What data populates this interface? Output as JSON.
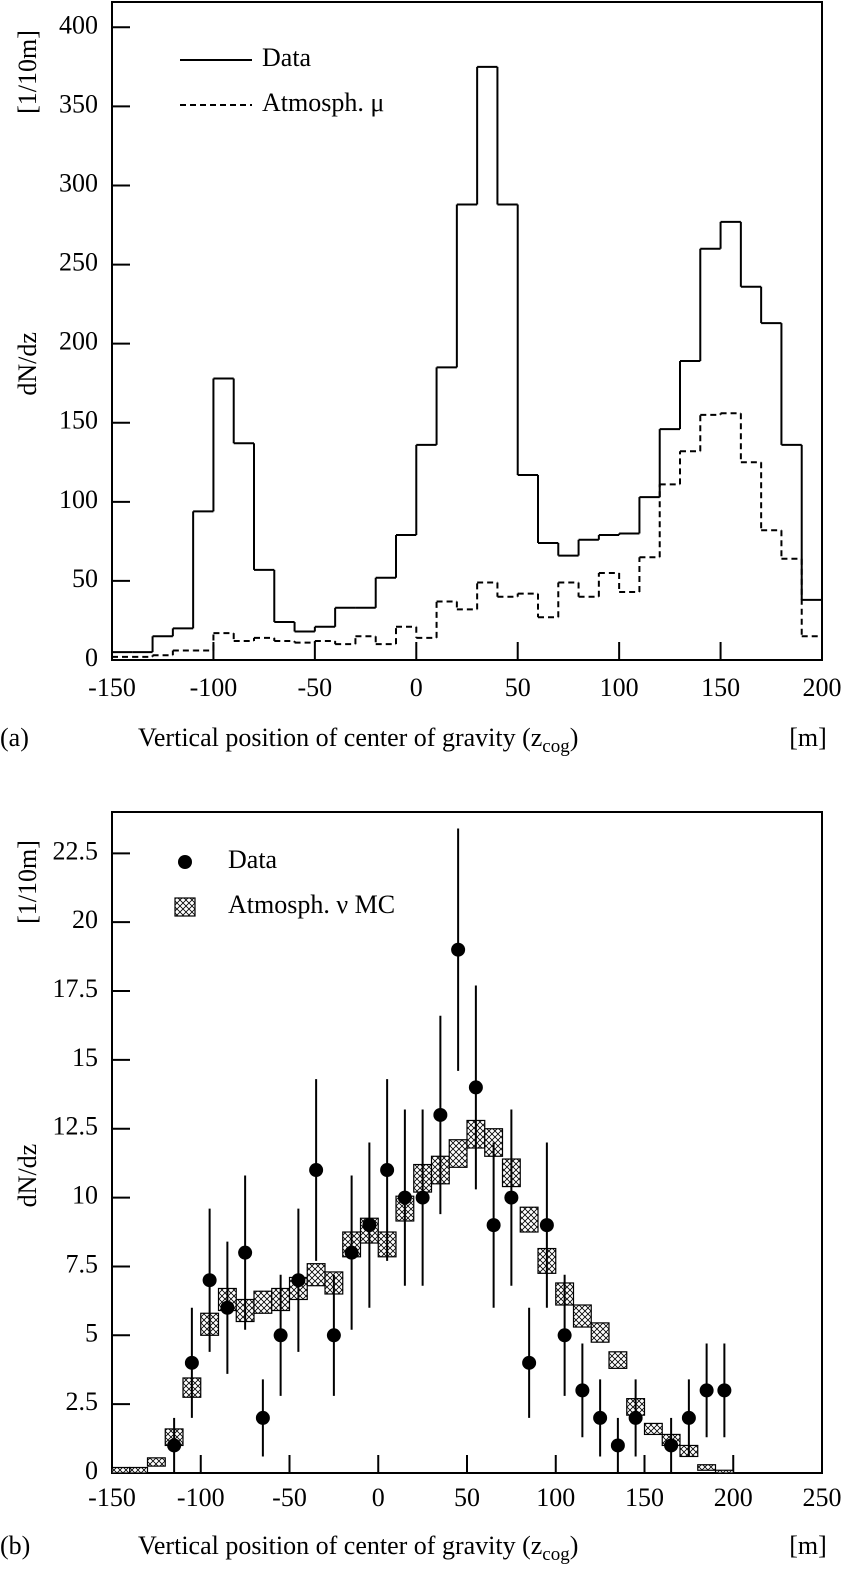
{
  "chart_data": [
    {
      "type": "histogram",
      "panel_label": "(a)",
      "ylabel": "dN/dz",
      "yunit": "[1/10m]",
      "xlabel": "Vertical position of center of gravity (z",
      "xlabel_sub": "cog",
      "xlabel_end": ")",
      "xunit": "[m]",
      "xlim": [
        -150,
        200
      ],
      "xticks": [
        -150,
        -100,
        -50,
        0,
        50,
        100,
        150,
        200
      ],
      "ylim": [
        0,
        416
      ],
      "yticks": [
        0,
        50,
        100,
        150,
        200,
        250,
        300,
        350,
        400
      ],
      "legend": "upper left",
      "bins": [
        -150,
        -140,
        -130,
        -120,
        -110,
        -100,
        -90,
        -80,
        -70,
        -60,
        -50,
        -40,
        -30,
        -20,
        -10,
        0,
        10,
        20,
        30,
        40,
        50,
        60,
        70,
        80,
        90,
        100,
        110,
        120,
        130,
        140,
        150,
        160,
        170,
        180,
        190,
        200
      ],
      "series": [
        {
          "name": "Data",
          "color": "#000000",
          "linestyle": "solid",
          "values": [
            5,
            5,
            15,
            20,
            94,
            178,
            137,
            57,
            24,
            18,
            21,
            33,
            33,
            52,
            79,
            136,
            185,
            288,
            375,
            288,
            117,
            74,
            66,
            76,
            79,
            80,
            103,
            146,
            189,
            260,
            277,
            236,
            213,
            136,
            38
          ]
        },
        {
          "name": "Atmosph. μ",
          "color": "#000000",
          "linestyle": "dashed",
          "values": [
            2,
            2,
            3,
            6,
            6,
            17,
            12,
            14,
            12,
            11,
            12,
            10,
            15,
            10,
            21,
            14,
            37,
            32,
            49,
            40,
            42,
            27,
            49,
            40,
            55,
            43,
            65,
            111,
            132,
            155,
            156,
            125,
            82,
            64,
            15
          ]
        }
      ]
    },
    {
      "type": "errorbar",
      "panel_label": "(b)",
      "ylabel": "dN/dz",
      "yunit": "[1/10m]",
      "xlabel": "Vertical position of center of gravity (z",
      "xlabel_sub": "cog",
      "xlabel_end": ")",
      "xunit": "[m]",
      "xlim": [
        -150,
        250
      ],
      "xticks": [
        -150,
        -100,
        -50,
        0,
        50,
        100,
        150,
        200,
        250
      ],
      "ylim": [
        0,
        24
      ],
      "yticks": [
        0,
        2.5,
        5,
        7.5,
        10,
        12.5,
        15,
        17.5,
        20,
        22.5
      ],
      "legend": "upper left",
      "points": {
        "name": "Data",
        "color": "#000000",
        "x": [
          -115,
          -105,
          -95,
          -85,
          -75,
          -65,
          -55,
          -45,
          -35,
          -25,
          -15,
          -5,
          5,
          15,
          25,
          35,
          45,
          55,
          65,
          75,
          85,
          95,
          105,
          115,
          125,
          135,
          145,
          165,
          175,
          185,
          195
        ],
        "values": [
          1,
          4,
          7,
          6,
          8,
          2,
          5,
          7,
          11,
          5,
          8,
          9,
          11,
          10,
          10,
          13,
          19,
          14,
          9,
          10,
          4,
          9,
          5,
          3,
          2,
          1,
          2,
          1,
          2,
          3,
          3
        ],
        "errors": [
          1,
          2,
          2.6,
          2.4,
          2.8,
          1.4,
          2.2,
          2.6,
          3.3,
          2.2,
          2.8,
          3,
          3.3,
          3.2,
          3.2,
          3.6,
          4.4,
          3.7,
          3,
          3.2,
          2,
          3,
          2.2,
          1.7,
          1.4,
          1,
          1.4,
          1,
          1.4,
          1.7,
          1.7
        ]
      },
      "mc": {
        "name": "Atmosph. ν MC",
        "color": "#000000",
        "bins": [
          -150,
          -140,
          -130,
          -120,
          -110,
          -100,
          -90,
          -80,
          -70,
          -60,
          -50,
          -40,
          -30,
          -20,
          -10,
          0,
          10,
          20,
          30,
          40,
          50,
          60,
          70,
          80,
          90,
          100,
          110,
          120,
          130,
          140,
          150,
          160,
          170,
          180,
          190,
          200
        ],
        "values": [
          0.1,
          0.1,
          0.4,
          1.3,
          3.1,
          5.4,
          6.3,
          5.9,
          6.2,
          6.3,
          6.7,
          7.2,
          6.9,
          8.3,
          8.8,
          8.3,
          9.6,
          10.7,
          11,
          11.6,
          12.3,
          12,
          10.9,
          9.2,
          7.7,
          6.5,
          5.7,
          5.1,
          4.1,
          2.4,
          1.6,
          1.2,
          0.8,
          0.2,
          0.05
        ],
        "errors": [
          0.1,
          0.1,
          0.15,
          0.3,
          0.35,
          0.4,
          0.4,
          0.4,
          0.4,
          0.4,
          0.4,
          0.4,
          0.4,
          0.45,
          0.45,
          0.45,
          0.45,
          0.5,
          0.5,
          0.5,
          0.5,
          0.5,
          0.5,
          0.45,
          0.45,
          0.4,
          0.4,
          0.35,
          0.3,
          0.3,
          0.2,
          0.2,
          0.2,
          0.1,
          0.05
        ]
      }
    }
  ]
}
